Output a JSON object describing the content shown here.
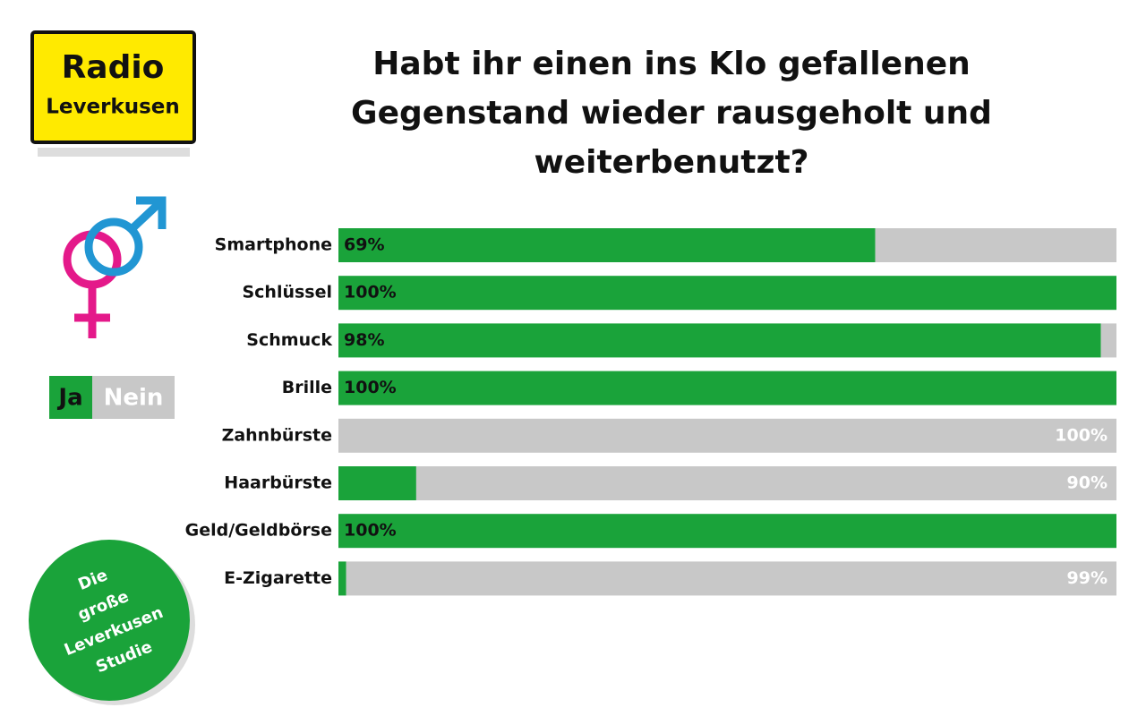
{
  "chart_data": {
    "type": "stacked-bar-horizontal",
    "title": "Habt ihr einen ins Klo gefallenen Gegenstand wieder rausgeholt und weiterbenutzt?",
    "logo": [
      "Radio",
      "Leverkusen"
    ],
    "badge": [
      "Die",
      "große",
      "Leverkusen",
      "Studie"
    ],
    "categories": [
      "Smartphone",
      "Schlüssel",
      "Schmuck",
      "Brille",
      "Zahnbürste",
      "Haarbürste",
      "Geld/Geldbörse",
      "E-Zigarette"
    ],
    "xlim": [
      0,
      100
    ],
    "series": [
      {
        "name": "Ja",
        "color": "#1aa33a",
        "values": [
          69,
          100,
          98,
          100,
          0,
          10,
          100,
          1
        ],
        "value_labels": [
          "69%",
          "100%",
          "98%",
          "100%",
          null,
          null,
          "100%",
          null
        ]
      },
      {
        "name": "Nein",
        "color": "#c8c8c8",
        "values": [
          31,
          0,
          2,
          0,
          100,
          90,
          0,
          99
        ],
        "value_labels": [
          null,
          null,
          null,
          null,
          "100%",
          "90%",
          null,
          "99%"
        ]
      }
    ]
  }
}
